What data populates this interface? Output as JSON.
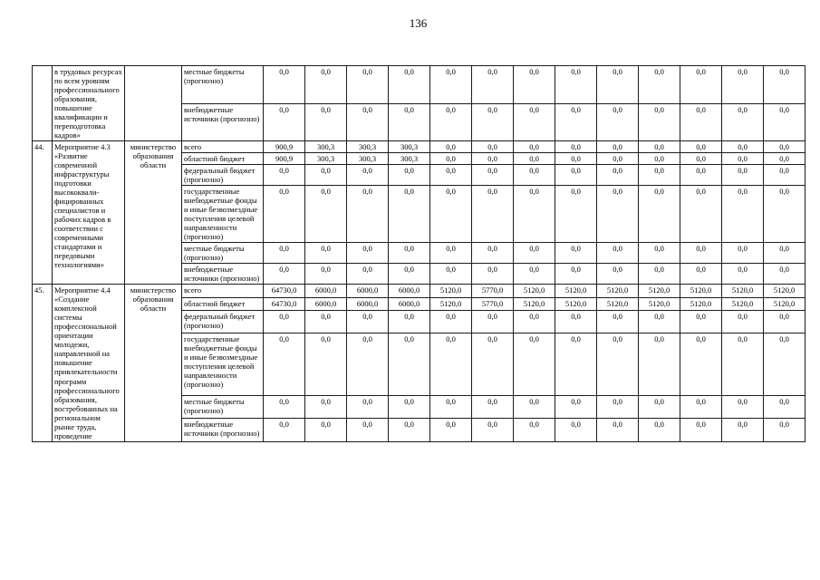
{
  "page": {
    "number": "136"
  },
  "table": {
    "sections": [
      {
        "num": "",
        "name": "в трудовых ресурсах по всем уровням профессионального образования, повышение квалификации и переподготовка кадров»",
        "ministry": "",
        "rows": [
          {
            "label": "местные бюджеты (прогнозно)",
            "values": [
              "0,0",
              "0,0",
              "0,0",
              "0,0",
              "0,0",
              "0,0",
              "0,0",
              "0,0",
              "0,0",
              "0,0",
              "0,0",
              "0,0",
              "0,0"
            ]
          },
          {
            "label": "внебюджетные источники (прогнозно)",
            "values": [
              "0,0",
              "0,0",
              "0,0",
              "0,0",
              "0,0",
              "0,0",
              "0,0",
              "0,0",
              "0,0",
              "0,0",
              "0,0",
              "0,0",
              "0,0"
            ]
          }
        ]
      },
      {
        "num": "44.",
        "name": "Мероприятие 4.3 «Развитие современной инфраструктуры подготовки высококвали-фицированных специалистов и рабочих кадров в соответствии с современными стандартами и передовыми технологиями»",
        "ministry": "министерство образования области",
        "rows": [
          {
            "label": "всего",
            "values": [
              "900,9",
              "300,3",
              "300,3",
              "300,3",
              "0,0",
              "0,0",
              "0,0",
              "0,0",
              "0,0",
              "0,0",
              "0,0",
              "0,0",
              "0,0"
            ]
          },
          {
            "label": "областной бюджет",
            "values": [
              "900,9",
              "300,3",
              "300,3",
              "300,3",
              "0,0",
              "0,0",
              "0,0",
              "0,0",
              "0,0",
              "0,0",
              "0,0",
              "0,0",
              "0,0"
            ]
          },
          {
            "label": "федеральный бюджет (прогнозно)",
            "values": [
              "0,0",
              "0,0",
              "0,0",
              "0,0",
              "0,0",
              "0,0",
              "0,0",
              "0,0",
              "0,0",
              "0,0",
              "0,0",
              "0,0",
              "0,0"
            ]
          },
          {
            "label": "государственные внебюджетные фонды и иные безвозмездные поступления целевой направленности (прогнозно)",
            "values": [
              "0,0",
              "0,0",
              "0,0",
              "0,0",
              "0,0",
              "0,0",
              "0,0",
              "0,0",
              "0,0",
              "0,0",
              "0,0",
              "0,0",
              "0,0"
            ]
          },
          {
            "label": "местные бюджеты (прогнозно)",
            "values": [
              "0,0",
              "0,0",
              "0,0",
              "0,0",
              "0,0",
              "0,0",
              "0,0",
              "0,0",
              "0,0",
              "0,0",
              "0,0",
              "0,0",
              "0,0"
            ]
          },
          {
            "label": "внебюджетные источники (прогнозно)",
            "values": [
              "0,0",
              "0,0",
              "0,0",
              "0,0",
              "0,0",
              "0,0",
              "0,0",
              "0,0",
              "0,0",
              "0,0",
              "0,0",
              "0,0",
              "0,0"
            ]
          }
        ]
      },
      {
        "num": "45.",
        "name": "Мероприятие 4.4 «Создание комплексной системы профессиональной ориентации молодежи, направленной на повышение привлекательности программ профессионального образования, востребованных на региональном рынке труда, проведение",
        "ministry": "министерство образования области",
        "rows": [
          {
            "label": "всего",
            "values": [
              "64730,0",
              "6000,0",
              "6000,0",
              "6000,0",
              "5120,0",
              "5770,0",
              "5120,0",
              "5120,0",
              "5120,0",
              "5120,0",
              "5120,0",
              "5120,0",
              "5120,0"
            ]
          },
          {
            "label": "областной бюджет",
            "values": [
              "64730,0",
              "6000,0",
              "6000,0",
              "6000,0",
              "5120,0",
              "5770,0",
              "5120,0",
              "5120,0",
              "5120,0",
              "5120,0",
              "5120,0",
              "5120,0",
              "5120,0"
            ]
          },
          {
            "label": "федеральный бюджет (прогнозно)",
            "values": [
              "0,0",
              "0,0",
              "0,0",
              "0,0",
              "0,0",
              "0,0",
              "0,0",
              "0,0",
              "0,0",
              "0,0",
              "0,0",
              "0,0",
              "0,0"
            ]
          },
          {
            "label": "государственные внебюджетные фонды и иные безвозмездные поступления целевой направленности (прогнозно)",
            "values": [
              "0,0",
              "0,0",
              "0,0",
              "0,0",
              "0,0",
              "0,0",
              "0,0",
              "0,0",
              "0,0",
              "0,0",
              "0,0",
              "0,0",
              "0,0"
            ]
          },
          {
            "label": "местные бюджеты (прогнозно)",
            "values": [
              "0,0",
              "0,0",
              "0,0",
              "0,0",
              "0,0",
              "0,0",
              "0,0",
              "0,0",
              "0,0",
              "0,0",
              "0,0",
              "0,0",
              "0,0"
            ]
          },
          {
            "label": "внебюджетные источники (прогнозно)",
            "values": [
              "0,0",
              "0,0",
              "0,0",
              "0,0",
              "0,0",
              "0,0",
              "0,0",
              "0,0",
              "0,0",
              "0,0",
              "0,0",
              "0,0",
              "0,0"
            ]
          }
        ]
      }
    ]
  }
}
